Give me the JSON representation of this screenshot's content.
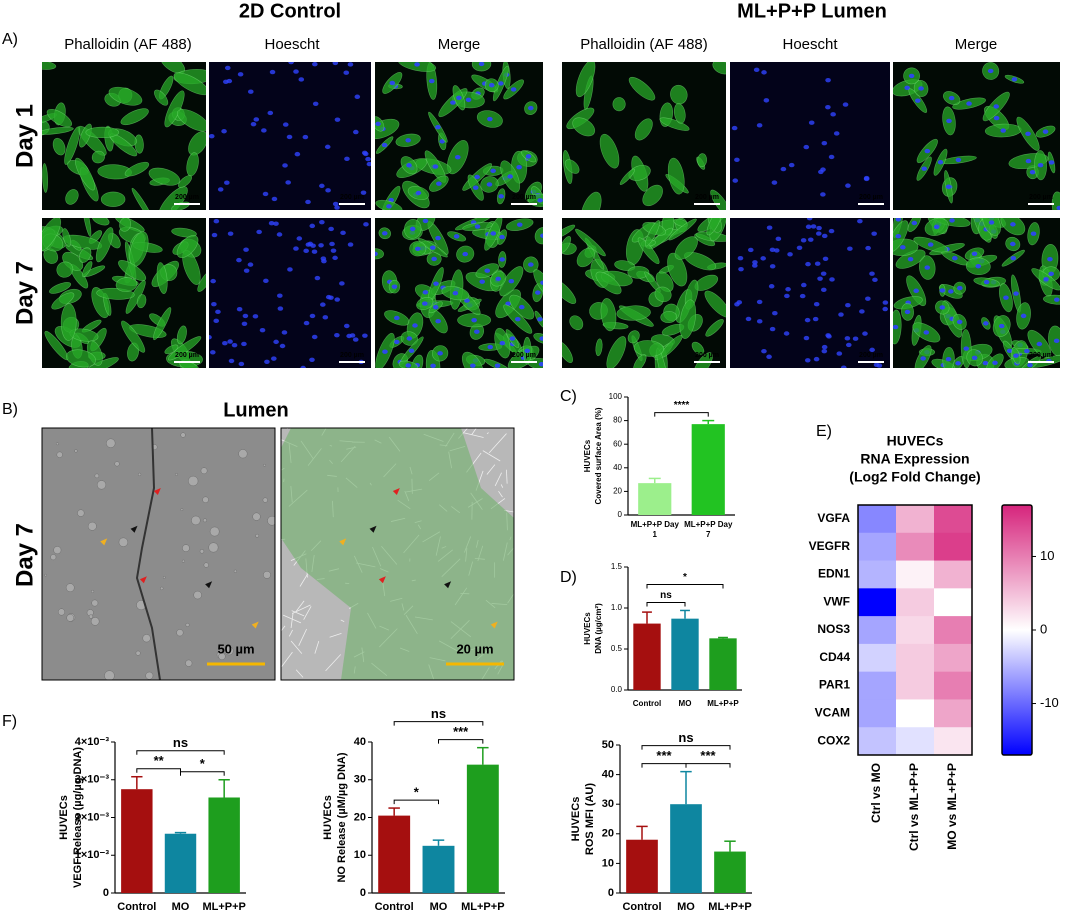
{
  "panel_labels": [
    "A)",
    "B)",
    "C)",
    "D)",
    "E)",
    "F)"
  ],
  "panel_a": {
    "groups": [
      {
        "title": "2D Control",
        "channels": [
          "Phalloidin (AF 488)",
          "Hoescht",
          "Merge"
        ]
      },
      {
        "title": "ML+P+P Lumen",
        "channels": [
          "Phalloidin (AF 488)",
          "Hoescht",
          "Merge"
        ]
      }
    ],
    "rows": [
      "Day 1",
      "Day 7"
    ],
    "scale_bar": "200 µm"
  },
  "panel_b": {
    "title": "Lumen",
    "row": "Day 7",
    "scale_bars": [
      "50 µm",
      "20 µm"
    ]
  },
  "chart_data": [
    {
      "type": "bar",
      "ylabel": [
        "HUVECs",
        "Covered surface Area (%)"
      ],
      "categories": [
        "ML+P+P Day 1",
        "ML+P+P Day 7"
      ],
      "values": [
        27,
        77
      ],
      "errors": [
        4,
        3
      ],
      "colors": [
        "#9cef8c",
        "#22c322"
      ],
      "ylim": [
        0,
        100
      ],
      "yticks": [
        0,
        20,
        40,
        60,
        80,
        100
      ],
      "significance": [
        {
          "pair": [
            "ML+P+P Day 1",
            "ML+P+P Day 7"
          ],
          "label": "****"
        }
      ]
    },
    {
      "type": "bar",
      "ylabel": [
        "HUVECs",
        "DNA (µg/cm²)"
      ],
      "categories": [
        "Control",
        "MO",
        "ML+P+P"
      ],
      "values": [
        0.81,
        0.87,
        0.63
      ],
      "errors": [
        0.14,
        0.1,
        0.01
      ],
      "colors": [
        "#a50f0f",
        "#0e86a0",
        "#1e9e1e"
      ],
      "ylim": [
        0,
        1.5
      ],
      "yticks": [
        {
          "value": 0,
          "label": "0.0"
        },
        0.5,
        {
          "value": 1,
          "label": "1.0"
        },
        1.5
      ],
      "significance": [
        {
          "pair": [
            "Control",
            "MO"
          ],
          "label": "ns"
        },
        {
          "pair": [
            "Control",
            "ML+P+P"
          ],
          "label": "*"
        }
      ]
    },
    {
      "type": "heatmap",
      "title": [
        "HUVECs",
        "RNA Expression",
        "(Log2 Fold Change)"
      ],
      "rows": [
        "VGFA",
        "VEGFR",
        "EDN1",
        "VWF",
        "NOS3",
        "CD44",
        "PAR1",
        "VCAM",
        "COX2"
      ],
      "columns": [
        "Ctrl vs MO",
        "Ctrl vs ML+P+P",
        "MO vs ML+P+P"
      ],
      "values": [
        [
          -8,
          6,
          14
        ],
        [
          -6,
          9,
          15
        ],
        [
          -5,
          1,
          6
        ],
        [
          -17,
          4,
          0
        ],
        [
          -6,
          3,
          10
        ],
        [
          -3,
          4,
          7
        ],
        [
          -6,
          4,
          10
        ],
        [
          -6,
          0,
          7
        ],
        [
          -4,
          -2,
          2
        ]
      ],
      "zlim": [
        -17,
        17
      ],
      "zticks": [
        -10,
        0,
        10
      ],
      "colors": [
        "#0000ff",
        "#ffffff",
        "#d6247c"
      ]
    },
    {
      "type": "bar",
      "ylabel": [
        "HUVECs",
        "VEGF Release (µg/µg DNA)"
      ],
      "categories": [
        "Control",
        "MO",
        "ML+P+P"
      ],
      "values": [
        0.00275,
        0.00157,
        0.00253
      ],
      "errors": [
        0.00033,
        3e-05,
        0.00047
      ],
      "colors": [
        "#a50f0f",
        "#0e86a0",
        "#1e9e1e"
      ],
      "ylim": [
        0,
        0.004
      ],
      "yticks": [
        0,
        {
          "value": 0.001,
          "label": "1×10⁻³"
        },
        {
          "value": 0.002,
          "label": "2×10⁻³"
        },
        {
          "value": 0.003,
          "label": "3×10⁻³"
        },
        {
          "value": 0.004,
          "label": "4×10⁻³"
        }
      ],
      "significance": [
        {
          "pair": [
            "Control",
            "MO"
          ],
          "label": "**"
        },
        {
          "pair": [
            "MO",
            "ML+P+P"
          ],
          "label": "*"
        },
        {
          "pair": [
            "Control",
            "ML+P+P"
          ],
          "label": "ns"
        }
      ]
    },
    {
      "type": "bar",
      "ylabel": [
        "HUVECs",
        "NO Release (µM/µg DNA)"
      ],
      "categories": [
        "Control",
        "MO",
        "ML+P+P"
      ],
      "values": [
        20.5,
        12.5,
        34
      ],
      "errors": [
        2,
        1.5,
        4.5
      ],
      "colors": [
        "#a50f0f",
        "#0e86a0",
        "#1e9e1e"
      ],
      "ylim": [
        0,
        40
      ],
      "yticks": [
        0,
        10,
        20,
        30,
        40
      ],
      "significance": [
        {
          "pair": [
            "Control",
            "MO"
          ],
          "label": "*"
        },
        {
          "pair": [
            "MO",
            "ML+P+P"
          ],
          "label": "***"
        },
        {
          "pair": [
            "Control",
            "ML+P+P"
          ],
          "label": "ns"
        }
      ]
    },
    {
      "type": "bar",
      "ylabel": [
        "HUVECs",
        "ROS MFI (AU)"
      ],
      "categories": [
        "Control",
        "MO",
        "ML+P+P"
      ],
      "values": [
        18,
        30,
        14
      ],
      "errors": [
        4.5,
        11,
        3.5
      ],
      "colors": [
        "#a50f0f",
        "#0e86a0",
        "#1e9e1e"
      ],
      "ylim": [
        0,
        50
      ],
      "yticks": [
        0,
        10,
        20,
        30,
        40,
        50
      ],
      "significance": [
        {
          "pair": [
            "Control",
            "MO"
          ],
          "label": "***"
        },
        {
          "pair": [
            "MO",
            "ML+P+P"
          ],
          "label": "***"
        },
        {
          "pair": [
            "Control",
            "ML+P+P"
          ],
          "label": "ns"
        }
      ]
    }
  ]
}
